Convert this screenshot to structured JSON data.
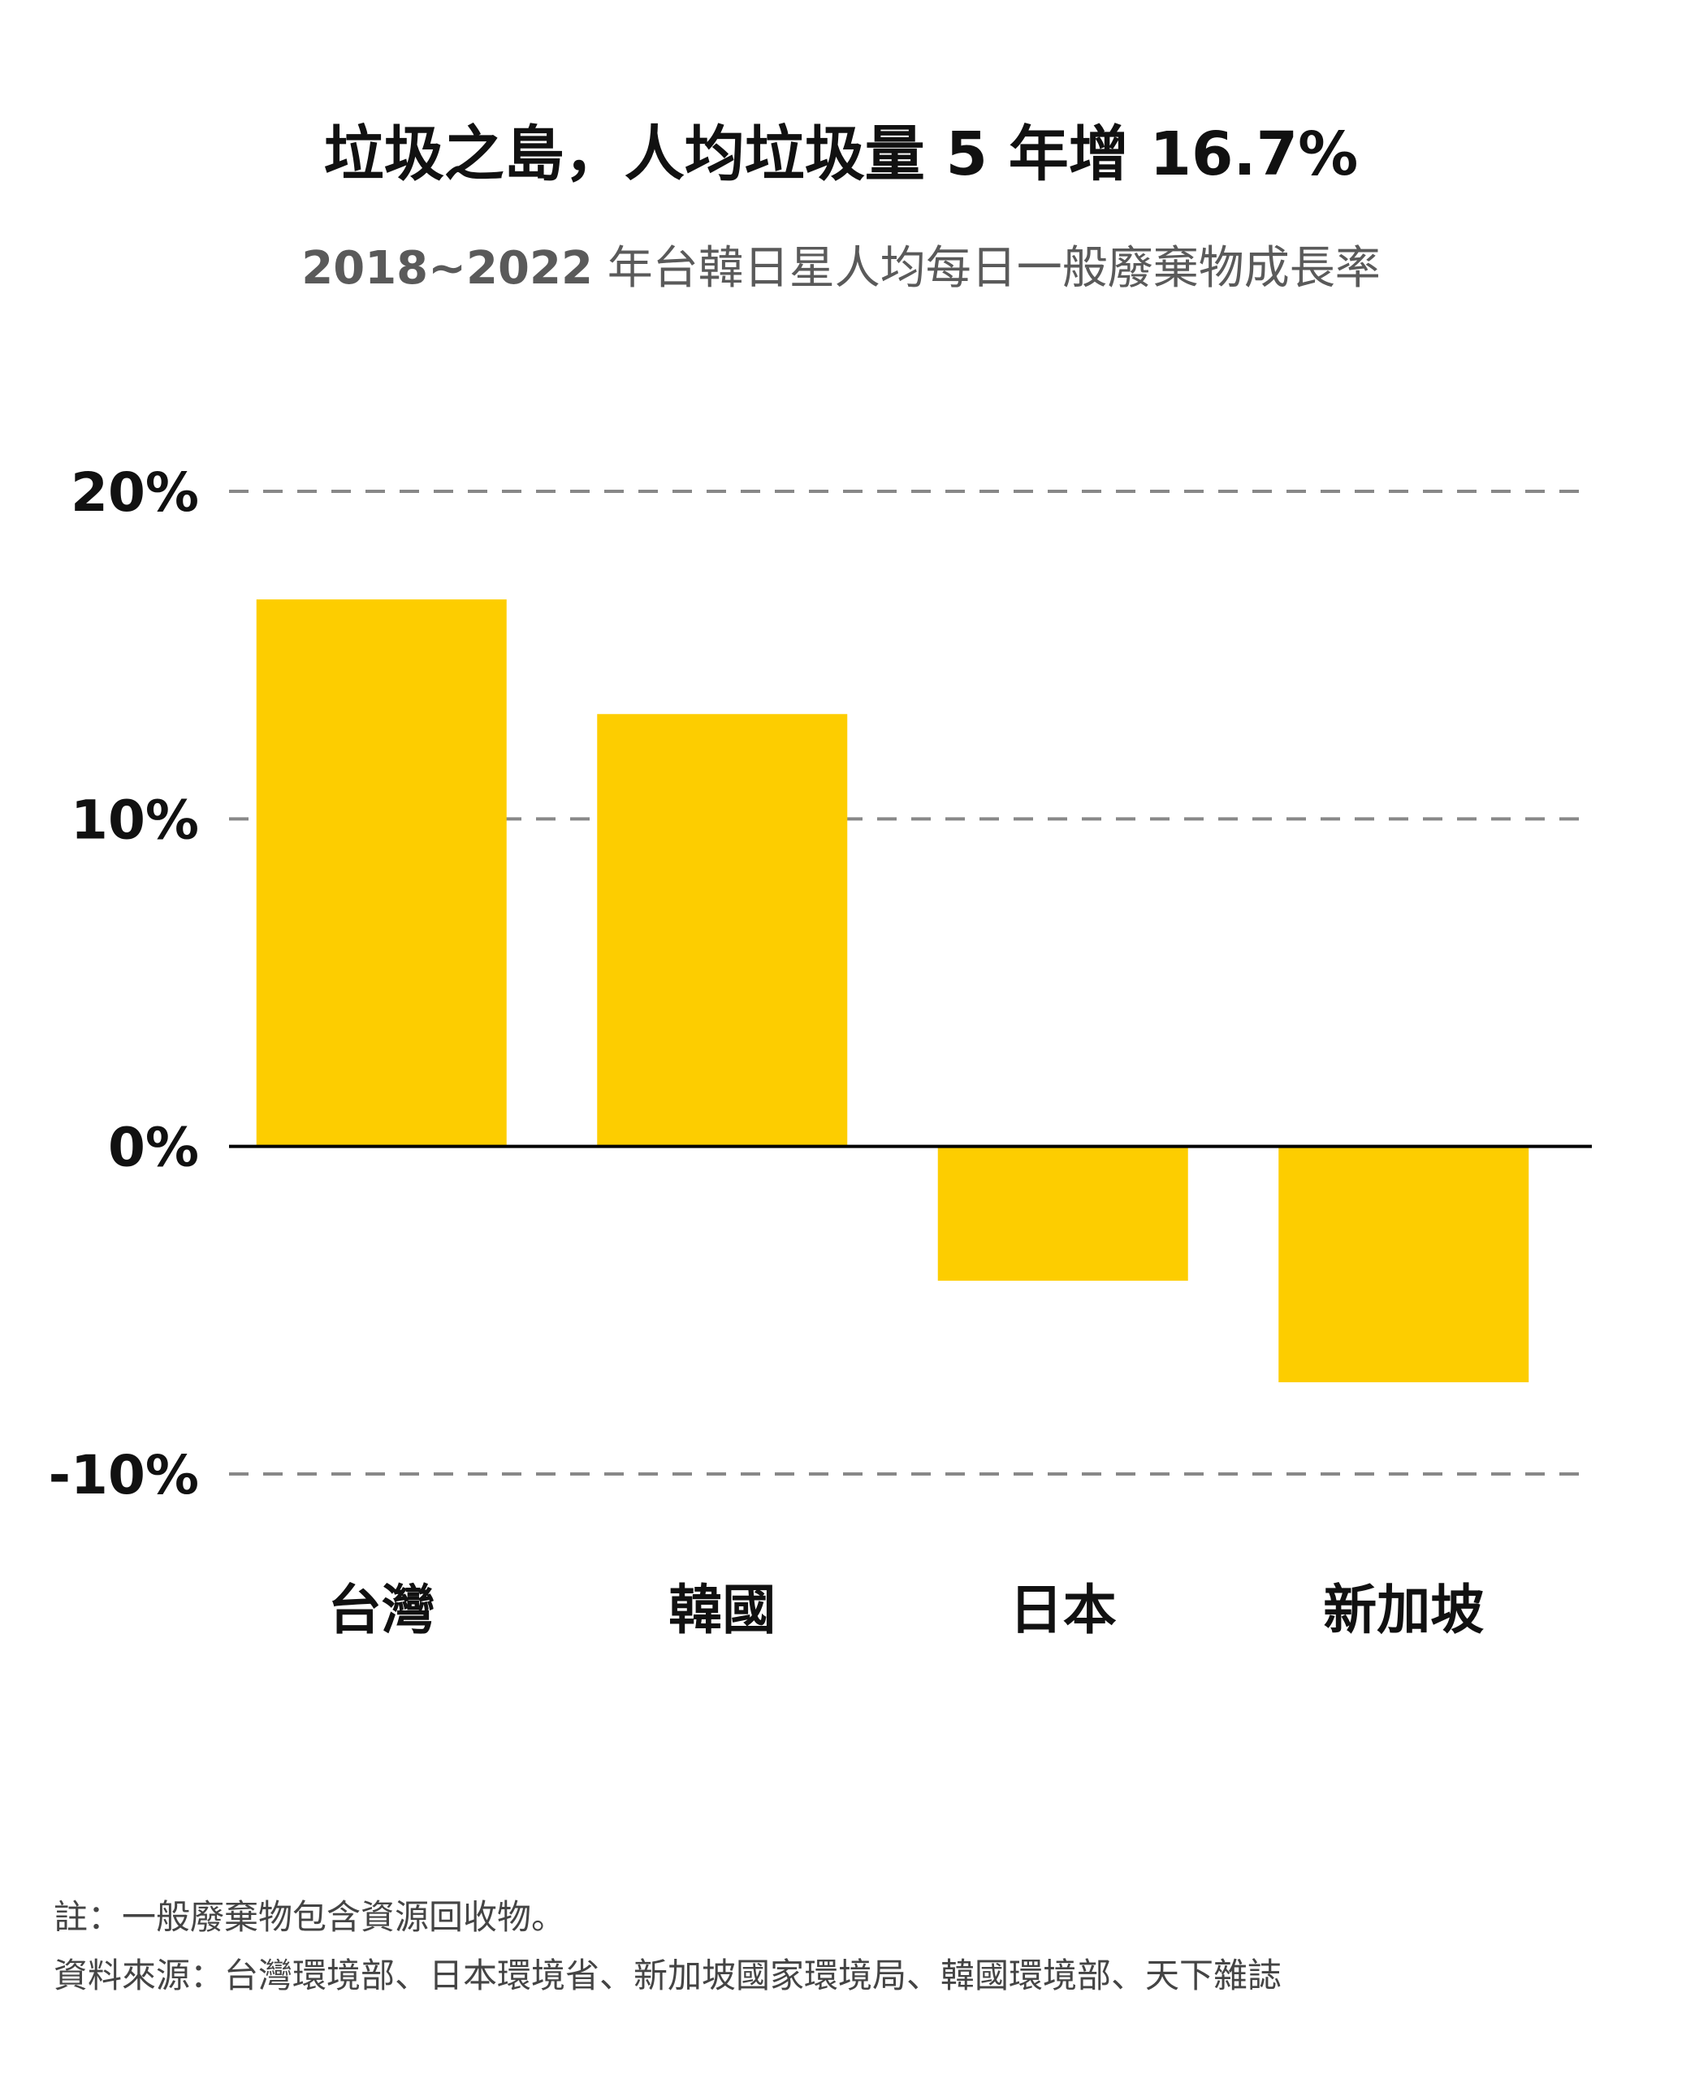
{
  "header": {
    "title": "垃圾之島，人均垃圾量 5 年增 16.7%",
    "subtitle_years": "2018~2022",
    "subtitle_text": "年台韓日星人均每日一般廢棄物成長率"
  },
  "chart_data": {
    "type": "bar",
    "categories": [
      "台灣",
      "韓國",
      "日本",
      "新加坡"
    ],
    "values": [
      16.7,
      13.2,
      -4.1,
      -7.2
    ],
    "yticks": [
      20,
      10,
      0,
      -10
    ],
    "ytick_labels": [
      "20%",
      "10%",
      "0%",
      "-10%"
    ],
    "ylim": [
      -10,
      20
    ],
    "grid": true,
    "bar_color": "#FDCD00",
    "grid_color": "#888888",
    "baseline_color": "#000000"
  },
  "notes": {
    "note": "註：一般廢棄物包含資源回收物。",
    "source": "資料來源：台灣環境部、日本環境省、新加坡國家環境局、韓國環境部、天下雜誌"
  }
}
